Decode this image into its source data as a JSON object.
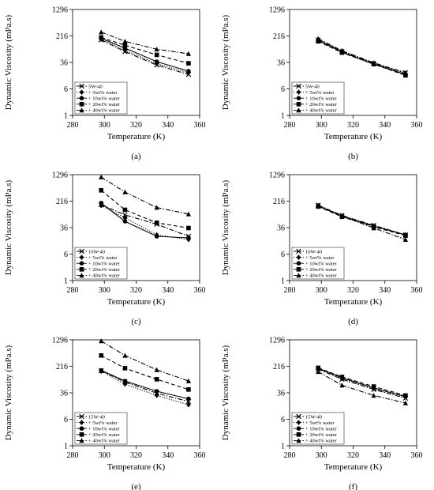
{
  "figure": {
    "panels": [
      {
        "caption": "(a)",
        "chart_data": {
          "type": "line",
          "title": "",
          "xlabel": "Temperature (K)",
          "ylabel": "Dynamic Viscosity (mPa.s)",
          "xlim": [
            280,
            360
          ],
          "ylim": [
            1,
            1296
          ],
          "yscale": "log6",
          "xticks": [
            280,
            300,
            320,
            340,
            360
          ],
          "yticks": [
            1,
            6,
            36,
            216,
            1296
          ],
          "legend_position": "bottom-left",
          "x": [
            298,
            313,
            333,
            353
          ],
          "series": [
            {
              "name": "5W-40",
              "style": "dash-dot",
              "marker": "x",
              "values": [
                165,
                75,
                30,
                16
              ]
            },
            {
              "name": "+ 5wt% water",
              "style": "dotted",
              "marker": "diamond",
              "values": [
                175,
                82,
                33,
                18
              ]
            },
            {
              "name": "+ 10wt% water",
              "style": "solid",
              "marker": "circle",
              "values": [
                185,
                95,
                38,
                20
              ]
            },
            {
              "name": "+ 20wt% water",
              "style": "dashed",
              "marker": "square",
              "values": [
                195,
                115,
                60,
                34
              ]
            },
            {
              "name": "+ 40wt% water",
              "style": "dash-dot",
              "marker": "triangle",
              "values": [
                280,
                150,
                88,
                65
              ]
            }
          ]
        }
      },
      {
        "caption": "(b)",
        "chart_data": {
          "type": "line",
          "title": "",
          "xlabel": "Temperature (K)",
          "ylabel": "Dynamic Viscosity (mPa.s)",
          "xlim": [
            280,
            360
          ],
          "ylim": [
            1,
            1296
          ],
          "yscale": "log6",
          "xticks": [
            280,
            300,
            320,
            340,
            360
          ],
          "yticks": [
            1,
            6,
            36,
            216,
            1296
          ],
          "legend_position": "bottom-left",
          "x": [
            298,
            313,
            333,
            353
          ],
          "series": [
            {
              "name": "5W-40",
              "style": "dash-dot",
              "marker": "x",
              "values": [
                165,
                75,
                34,
                18
              ]
            },
            {
              "name": "+ 5wt% water",
              "style": "dotted",
              "marker": "diamond",
              "values": [
                170,
                78,
                34,
                17
              ]
            },
            {
              "name": "+ 10wt% water",
              "style": "solid",
              "marker": "circle",
              "values": [
                160,
                72,
                32,
                16
              ]
            },
            {
              "name": "+ 20wt% water",
              "style": "dashed",
              "marker": "square",
              "values": [
                150,
                70,
                32,
                15
              ]
            },
            {
              "name": "+ 40wt% water",
              "style": "dash-dot",
              "marker": "triangle",
              "values": [
                180,
                80,
                35,
                18
              ]
            }
          ]
        }
      },
      {
        "caption": "(c)",
        "chart_data": {
          "type": "line",
          "title": "",
          "xlabel": "Temperature (K)",
          "ylabel": "Dynamic Viscosity (mPa.s)",
          "xlim": [
            280,
            360
          ],
          "ylim": [
            1,
            1296
          ],
          "yscale": "log6",
          "xticks": [
            280,
            300,
            320,
            340,
            360
          ],
          "yticks": [
            1,
            6,
            36,
            216,
            1296
          ],
          "legend_position": "bottom-left",
          "x": [
            298,
            313,
            333,
            353
          ],
          "series": [
            {
              "name": "10W-40",
              "style": "dash-dot",
              "marker": "x",
              "values": [
                170,
                85,
                45,
                20
              ]
            },
            {
              "name": "+ 5wt% water",
              "style": "dotted",
              "marker": "diamond",
              "values": [
                160,
                70,
                22,
                16
              ]
            },
            {
              "name": "+ 10wt% water",
              "style": "solid",
              "marker": "circle",
              "values": [
                190,
                55,
                20,
                18
              ]
            },
            {
              "name": "+ 20wt% water",
              "style": "dashed",
              "marker": "square",
              "values": [
                450,
                120,
                50,
                35
              ]
            },
            {
              "name": "+ 40wt% water",
              "style": "dash-dot",
              "marker": "triangle",
              "values": [
                1100,
                400,
                140,
                90
              ]
            }
          ]
        }
      },
      {
        "caption": "(d)",
        "chart_data": {
          "type": "line",
          "title": "",
          "xlabel": "Temperature (K)",
          "ylabel": "Dynamic Viscosity (mPa.s)",
          "xlim": [
            280,
            360
          ],
          "ylim": [
            1,
            1296
          ],
          "yscale": "log6",
          "xticks": [
            280,
            300,
            320,
            340,
            360
          ],
          "yticks": [
            1,
            6,
            36,
            216,
            1296
          ],
          "legend_position": "bottom-left",
          "x": [
            298,
            313,
            333,
            353
          ],
          "series": [
            {
              "name": "10W-40",
              "style": "dash-dot",
              "marker": "x",
              "values": [
                165,
                82,
                42,
                22
              ]
            },
            {
              "name": "+ 5wt% water",
              "style": "dotted",
              "marker": "diamond",
              "values": [
                160,
                80,
                40,
                22
              ]
            },
            {
              "name": "+ 10wt% water",
              "style": "solid",
              "marker": "circle",
              "values": [
                155,
                78,
                40,
                22
              ]
            },
            {
              "name": "+ 20wt% water",
              "style": "dashed",
              "marker": "square",
              "values": [
                150,
                75,
                38,
                21
              ]
            },
            {
              "name": "+ 40wt% water",
              "style": "dash-dot",
              "marker": "triangle",
              "values": [
                160,
                78,
                35,
                16
              ]
            }
          ]
        }
      },
      {
        "caption": "(e)",
        "chart_data": {
          "type": "line",
          "title": "",
          "xlabel": "Temperature (K)",
          "ylabel": "Dynamic Viscosity (mPa.s)",
          "xlim": [
            280,
            360
          ],
          "ylim": [
            1,
            1296
          ],
          "yscale": "log6",
          "xticks": [
            280,
            300,
            320,
            340,
            360
          ],
          "yticks": [
            1,
            6,
            36,
            216,
            1296
          ],
          "legend_position": "bottom-left",
          "x": [
            298,
            313,
            333,
            353
          ],
          "series": [
            {
              "name": "15W-40",
              "style": "dash-dot",
              "marker": "x",
              "values": [
                160,
                75,
                35,
                20
              ]
            },
            {
              "name": "+ 5wt% water",
              "style": "dotted",
              "marker": "diamond",
              "values": [
                155,
                65,
                30,
                16
              ]
            },
            {
              "name": "+ 10wt% water",
              "style": "solid",
              "marker": "circle",
              "values": [
                165,
                80,
                40,
                24
              ]
            },
            {
              "name": "+ 20wt% water",
              "style": "dashed",
              "marker": "square",
              "values": [
                450,
                190,
                90,
                45
              ]
            },
            {
              "name": "+ 40wt% water",
              "style": "dash-dot",
              "marker": "triangle",
              "values": [
                1200,
                450,
                170,
                80
              ]
            }
          ]
        }
      },
      {
        "caption": "(f)",
        "chart_data": {
          "type": "line",
          "title": "",
          "xlabel": "Temperature (K)",
          "ylabel": "Dynamic Viscosity (mPa.s)",
          "xlim": [
            280,
            360
          ],
          "ylim": [
            1,
            1296
          ],
          "yscale": "log6",
          "xticks": [
            280,
            300,
            320,
            340,
            360
          ],
          "yticks": [
            1,
            6,
            36,
            216,
            1296
          ],
          "legend_position": "bottom-left",
          "x": [
            298,
            313,
            333,
            353
          ],
          "series": [
            {
              "name": "15W-40",
              "style": "dash-dot",
              "marker": "x",
              "values": [
                180,
                90,
                45,
                25
              ]
            },
            {
              "name": "+ 5wt% water",
              "style": "dotted",
              "marker": "diamond",
              "values": [
                185,
                95,
                48,
                27
              ]
            },
            {
              "name": "+ 10wt% water",
              "style": "solid",
              "marker": "circle",
              "values": [
                190,
                100,
                50,
                28
              ]
            },
            {
              "name": "+ 20wt% water",
              "style": "dashed",
              "marker": "square",
              "values": [
                195,
                105,
                55,
                30
              ]
            },
            {
              "name": "+ 40wt% water",
              "style": "dash-dot",
              "marker": "triangle",
              "values": [
                150,
                60,
                30,
                18
              ]
            }
          ]
        }
      }
    ]
  }
}
